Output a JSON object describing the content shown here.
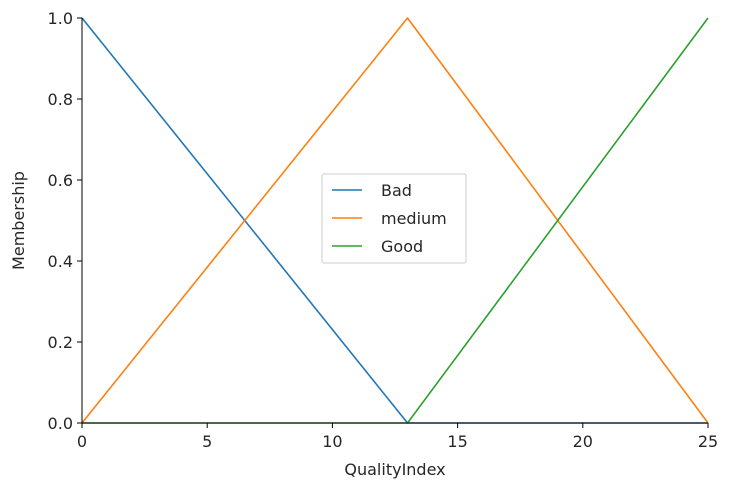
{
  "chart_data": {
    "type": "line",
    "title": "",
    "xlabel": "QualityIndex",
    "ylabel": "Membership",
    "xlim": [
      0,
      25
    ],
    "ylim": [
      0,
      1.0
    ],
    "xticks": [
      "0",
      "5",
      "10",
      "15",
      "20",
      "25"
    ],
    "yticks": [
      "0.0",
      "0.2",
      "0.4",
      "0.6",
      "0.8",
      "1.0"
    ],
    "grid": false,
    "legend_position": "center",
    "series": [
      {
        "name": "Bad",
        "color": "#1f77b4",
        "x": [
          0,
          13,
          25
        ],
        "y": [
          1.0,
          0.0,
          0.0
        ]
      },
      {
        "name": "medium",
        "color": "#ff7f0e",
        "x": [
          0,
          13,
          25
        ],
        "y": [
          0.0,
          1.0,
          0.0
        ]
      },
      {
        "name": "Good",
        "color": "#2ca02c",
        "x": [
          0,
          13,
          25
        ],
        "y": [
          0.0,
          0.0,
          1.0
        ]
      }
    ]
  }
}
